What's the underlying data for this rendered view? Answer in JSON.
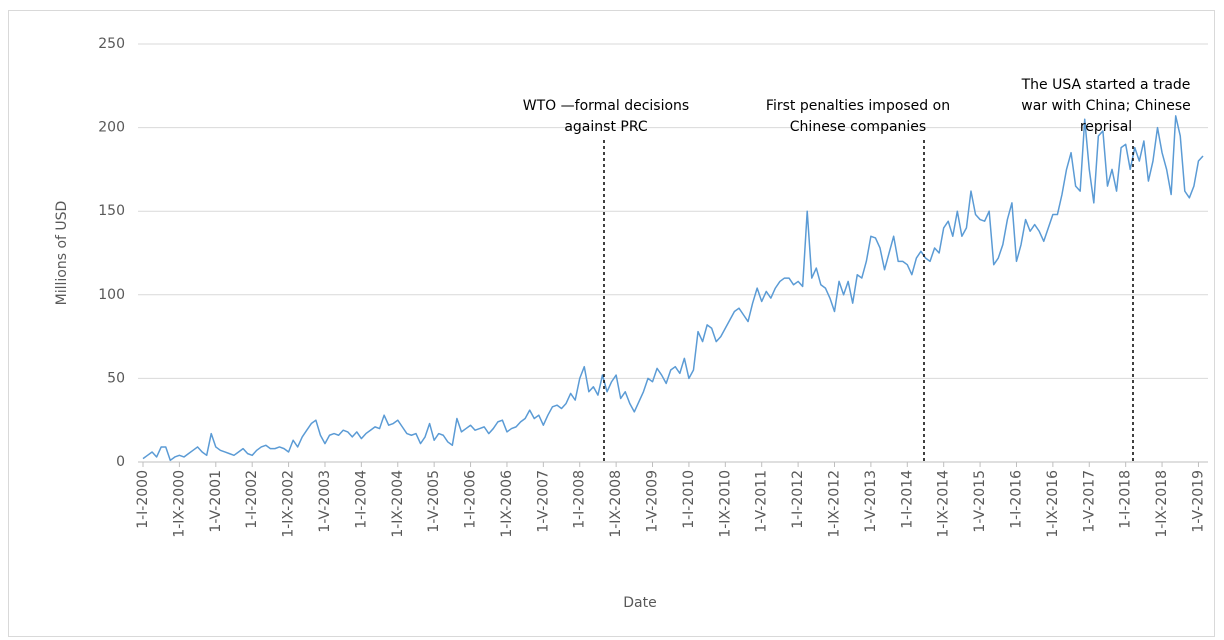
{
  "chart_data": {
    "type": "line",
    "x_label": "Date",
    "y_label": "Millions of USD",
    "ylim": [
      0,
      250
    ],
    "yticks": [
      0,
      50,
      100,
      150,
      200,
      250
    ],
    "grid": true,
    "annotations": [
      {
        "lines": [
          "WTO —formal decisions",
          "against PRC"
        ]
      },
      {
        "lines": [
          "First penalties imposed on",
          "Chinese companies"
        ]
      },
      {
        "lines": [
          "The USA started a trade",
          "war with China; Chinese",
          "reprisal"
        ]
      }
    ],
    "categories": [
      "1-I-2000",
      null,
      null,
      null,
      null,
      null,
      null,
      null,
      "1-IX-2000",
      null,
      null,
      null,
      null,
      null,
      null,
      null,
      "1-V-2001",
      null,
      null,
      null,
      null,
      null,
      null,
      null,
      "1-I-2002",
      null,
      null,
      null,
      null,
      null,
      null,
      null,
      "1-IX-2002",
      null,
      null,
      null,
      null,
      null,
      null,
      null,
      "1-V-2003",
      null,
      null,
      null,
      null,
      null,
      null,
      null,
      "1-I-2004",
      null,
      null,
      null,
      null,
      null,
      null,
      null,
      "1-IX-2004",
      null,
      null,
      null,
      null,
      null,
      null,
      null,
      "1-V-2005",
      null,
      null,
      null,
      null,
      null,
      null,
      null,
      "1-I-2006",
      null,
      null,
      null,
      null,
      null,
      null,
      null,
      "1-IX-2006",
      null,
      null,
      null,
      null,
      null,
      null,
      null,
      "1-V-2007",
      null,
      null,
      null,
      null,
      null,
      null,
      null,
      "1-I-2008",
      null,
      null,
      null,
      null,
      null,
      null,
      null,
      "1-IX-2008",
      null,
      null,
      null,
      null,
      null,
      null,
      null,
      "1-V-2009",
      null,
      null,
      null,
      null,
      null,
      null,
      null,
      "1-I-2010",
      null,
      null,
      null,
      null,
      null,
      null,
      null,
      "1-IX-2010",
      null,
      null,
      null,
      null,
      null,
      null,
      null,
      "1-V-2011",
      null,
      null,
      null,
      null,
      null,
      null,
      null,
      "1-I-2012",
      null,
      null,
      null,
      null,
      null,
      null,
      null,
      "1-IX-2012",
      null,
      null,
      null,
      null,
      null,
      null,
      null,
      "1-V-2013",
      null,
      null,
      null,
      null,
      null,
      null,
      null,
      "1-I-2014",
      null,
      null,
      null,
      null,
      null,
      null,
      null,
      "1-IX-2014",
      null,
      null,
      null,
      null,
      null,
      null,
      null,
      "1-V-2015",
      null,
      null,
      null,
      null,
      null,
      null,
      null,
      "1-I-2016",
      null,
      null,
      null,
      null,
      null,
      null,
      null,
      "1-IX-2016",
      null,
      null,
      null,
      null,
      null,
      null,
      null,
      "1-V-2017",
      null,
      null,
      null,
      null,
      null,
      null,
      null,
      "1-I-2018",
      null,
      null,
      null,
      null,
      null,
      null,
      null,
      "1-IX-2018",
      null,
      null,
      null,
      null,
      null,
      null,
      null,
      "1-V-2019",
      null
    ],
    "series": [
      {
        "color": "#5b9bd5",
        "values": [
          2,
          4,
          6,
          3,
          9,
          9,
          1,
          3,
          4,
          3,
          5,
          7,
          9,
          6,
          4,
          17,
          9,
          7,
          6,
          5,
          4,
          6,
          8,
          5,
          4,
          7,
          9,
          10,
          8,
          8,
          9,
          8,
          6,
          13,
          9,
          15,
          19,
          23,
          25,
          16,
          11,
          16,
          17,
          16,
          19,
          18,
          15,
          18,
          14,
          17,
          19,
          21,
          20,
          28,
          22,
          23,
          25,
          21,
          17,
          16,
          17,
          11,
          15,
          23,
          13,
          17,
          16,
          12,
          10,
          26,
          18,
          20,
          22,
          19,
          20,
          21,
          17,
          20,
          24,
          25,
          18,
          20,
          21,
          24,
          26,
          31,
          26,
          28,
          22,
          28,
          33,
          34,
          32,
          35,
          41,
          37,
          50,
          57,
          42,
          45,
          40,
          52,
          42,
          48,
          52,
          38,
          42,
          35,
          30,
          36,
          42,
          50,
          48,
          56,
          52,
          47,
          55,
          57,
          53,
          62,
          50,
          55,
          78,
          72,
          82,
          80,
          72,
          75,
          80,
          85,
          90,
          92,
          88,
          84,
          95,
          104,
          96,
          102,
          98,
          104,
          108,
          110,
          110,
          106,
          108,
          105,
          150,
          110,
          116,
          106,
          104,
          98,
          90,
          108,
          100,
          108,
          95,
          112,
          110,
          120,
          135,
          134,
          128,
          115,
          125,
          135,
          120,
          120,
          118,
          112,
          122,
          126,
          122,
          120,
          128,
          125,
          140,
          144,
          135,
          150,
          135,
          140,
          162,
          148,
          145,
          144,
          150,
          118,
          122,
          130,
          145,
          155,
          120,
          130,
          145,
          138,
          142,
          138,
          132,
          140,
          148,
          148,
          160,
          175,
          185,
          165,
          162,
          205,
          175,
          155,
          195,
          198,
          165,
          175,
          162,
          188,
          190,
          175,
          188,
          180,
          192,
          168,
          180,
          200,
          185,
          175,
          160,
          207,
          195,
          162,
          158,
          165,
          180,
          183
        ]
      }
    ]
  }
}
